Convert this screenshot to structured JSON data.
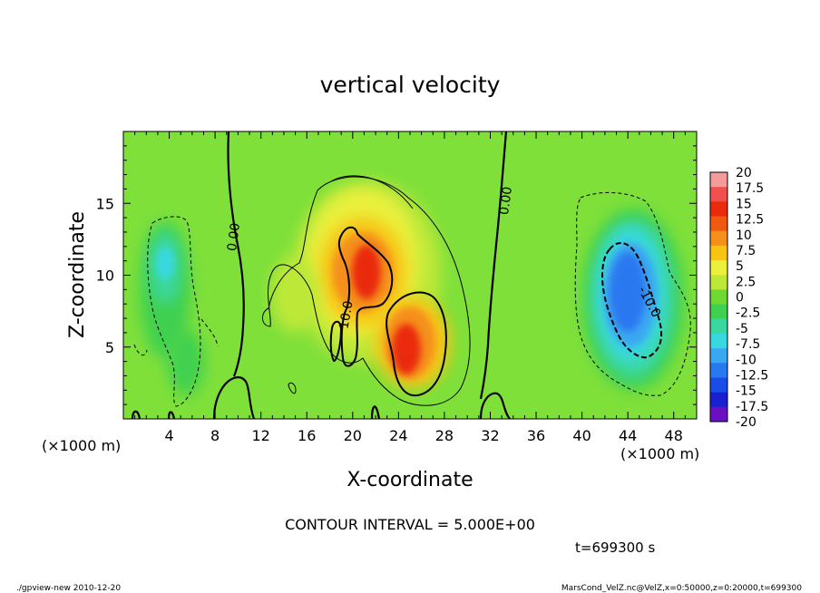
{
  "chart_data": {
    "type": "heatmap",
    "title": "vertical velocity",
    "xlabel": "X-coordinate",
    "ylabel": "Z-coordinate",
    "x_unit_label_left": "(×1000 m)",
    "x_unit_label_right": "(×1000 m)",
    "xlim": [
      0,
      50
    ],
    "ylim": [
      0,
      20
    ],
    "x_ticks": [
      4,
      8,
      12,
      16,
      20,
      24,
      28,
      32,
      36,
      40,
      44,
      48
    ],
    "y_ticks": [
      5,
      10,
      15
    ],
    "contour_interval_text": "CONTOUR INTERVAL = 5.000E+00",
    "time_text": "t=699300 s",
    "contour_labels": [
      "0.00",
      "0.00",
      "10.0",
      "-10.0"
    ],
    "colorbar": {
      "levels": [
        "20",
        "17.5",
        "15",
        "12.5",
        "10",
        "7.5",
        "5",
        "2.5",
        "0",
        "-2.5",
        "-5",
        "-7.5",
        "-10",
        "-12.5",
        "-15",
        "-17.5",
        "-20"
      ],
      "colors": [
        "#f49c9c",
        "#f05050",
        "#ea2a0c",
        "#f05a10",
        "#f5901a",
        "#f8c414",
        "#eaf03c",
        "#bde838",
        "#6fd832",
        "#40d050",
        "#3ad8a0",
        "#38d8e0",
        "#3aa8f0",
        "#2a78f0",
        "#1a4ce8",
        "#1a20d0",
        "#6a10c0"
      ]
    },
    "features": [
      {
        "name": "updraft-core-1",
        "x": 21.5,
        "z": 10.0,
        "value": 15
      },
      {
        "name": "updraft-core-2",
        "x": 24.5,
        "z": 5.5,
        "value": 17
      },
      {
        "name": "downdraft-core",
        "x": 44.0,
        "z": 8.5,
        "value": -14
      },
      {
        "name": "downdraft-weak",
        "x": 3.5,
        "z": 11.0,
        "value": -6
      }
    ]
  },
  "footer": {
    "left": "./gpview-new   2010-12-20",
    "right": "MarsCond_VelZ.nc@VelZ,x=0:50000,z=0:20000,t=699300"
  }
}
